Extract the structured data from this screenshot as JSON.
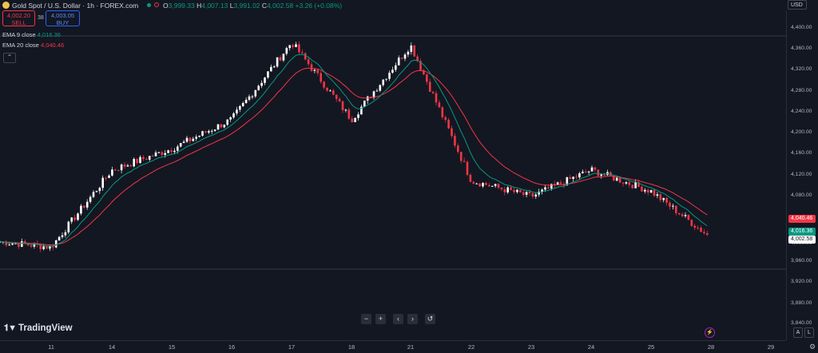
{
  "header": {
    "symbol_title": "Gold Spot / U.S. Dollar · 1h · FOREX.com",
    "open_key": "O",
    "open": "3,999.33",
    "high_key": "H",
    "high": "4,007.13",
    "low_key": "L",
    "low": "3,991.02",
    "close_key": "C",
    "close": "4,002.58",
    "change": "+3.26 (+0.08%)"
  },
  "trade": {
    "sell_price": "4,002.20",
    "sell_label": "SELL",
    "spread": "38",
    "buy_price": "4,003.05",
    "buy_label": "BUY"
  },
  "indicators": [
    {
      "name": "EMA 9 close",
      "value": "4,016.36",
      "color": "#089981"
    },
    {
      "name": "EMA 20 close",
      "value": "4,040.46",
      "color": "#f23645"
    }
  ],
  "currency": "USD",
  "price_axis": {
    "ticks": [
      "4,400.00",
      "4,360.00",
      "4,320.00",
      "4,280.00",
      "4,240.00",
      "4,200.00",
      "4,160.00",
      "4,120.00",
      "4,080.00",
      "4,040.00",
      "4,000.00",
      "3,960.00",
      "3,920.00",
      "3,880.00",
      "3,840.00"
    ],
    "labels": [
      {
        "text": "4,040.46",
        "bg": "#f23645",
        "fg": "#ffffff"
      },
      {
        "text": "4,016.36",
        "bg": "#089981",
        "fg": "#ffffff"
      },
      {
        "text": "4,002.58",
        "bg": "#ffffff",
        "fg": "#131722"
      }
    ]
  },
  "time_axis": {
    "ticks": [
      "11",
      "14",
      "15",
      "16",
      "17",
      "18",
      "21",
      "22",
      "23",
      "24",
      "25",
      "28",
      "29"
    ]
  },
  "brand": "TradingView",
  "nav_buttons": [
    "−",
    "+",
    "‹",
    "›",
    "↺"
  ],
  "corner_buttons": [
    "A",
    "L"
  ],
  "colors": {
    "up": "#ffffff",
    "down": "#f23645",
    "background": "#131722",
    "ema9": "#089981",
    "ema20": "#f23645"
  },
  "chart_data": {
    "type": "candlestick",
    "x": [
      "11",
      "14",
      "15",
      "16",
      "17",
      "18",
      "21",
      "22",
      "23",
      "24",
      "25",
      "28"
    ],
    "ema9_last": 4016.36,
    "ema20_last": 4040.46,
    "last_close": 4002.58,
    "ylim": [
      3840,
      4400
    ],
    "approx_close_path": [
      {
        "x": "11",
        "y": 3985
      },
      {
        "x": "14",
        "y": 4130
      },
      {
        "x": "15",
        "y": 4170
      },
      {
        "x": "16",
        "y": 4225
      },
      {
        "x": "17",
        "y": 4370
      },
      {
        "x": "18",
        "y": 4225
      },
      {
        "x": "21",
        "y": 4365
      },
      {
        "x": "22",
        "y": 4110
      },
      {
        "x": "23",
        "y": 4080
      },
      {
        "x": "24",
        "y": 4130
      },
      {
        "x": "25",
        "y": 4090
      },
      {
        "x": "28",
        "y": 4002.58
      }
    ]
  }
}
